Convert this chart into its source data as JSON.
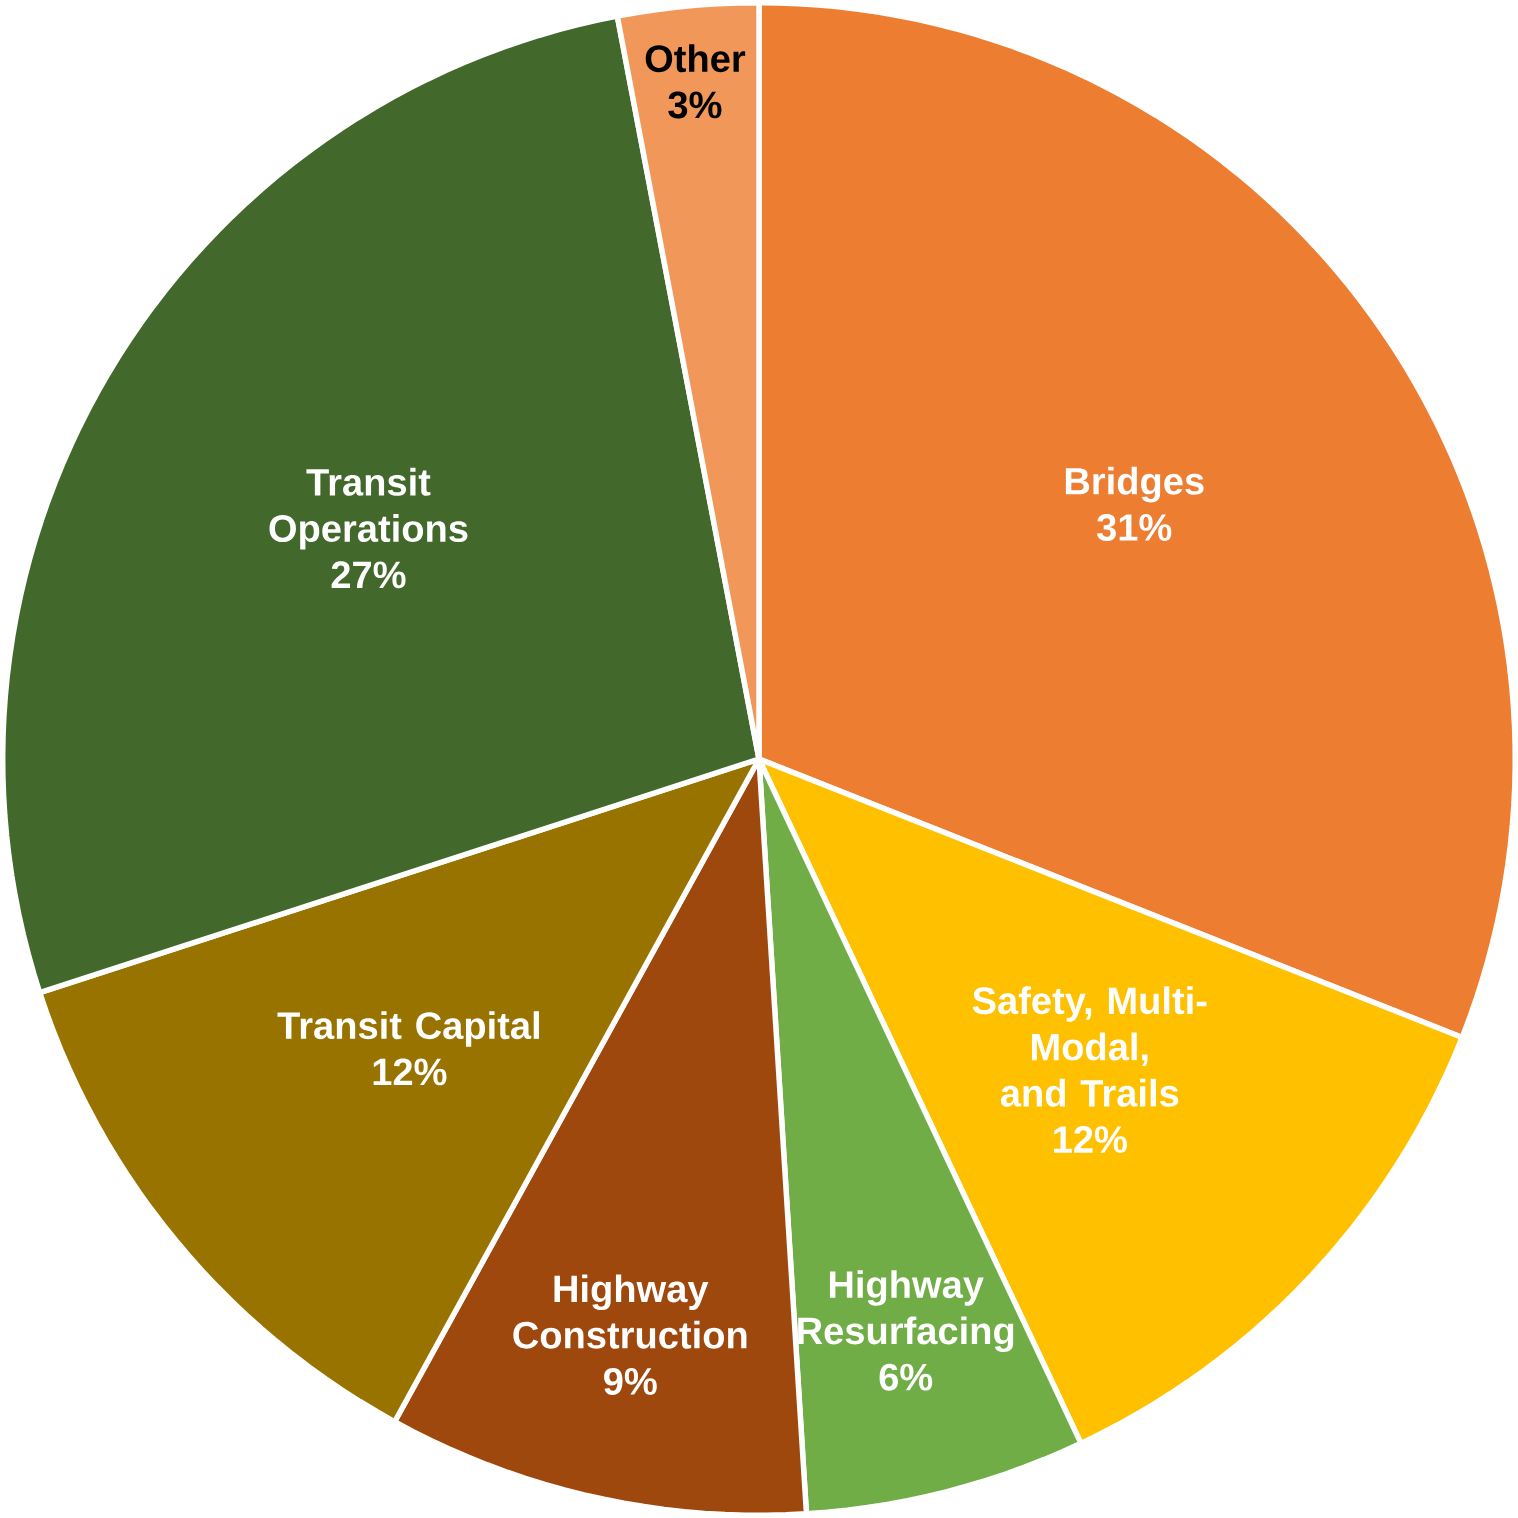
{
  "chart_data": {
    "type": "pie",
    "categories": [
      "Bridges",
      "Safety, Multi-Modal, and Trails",
      "Highway Resurfacing",
      "Highway Construction",
      "Transit Capital",
      "Transit Operations",
      "Other"
    ],
    "values": [
      31,
      12,
      6,
      9,
      12,
      27,
      3
    ],
    "value_labels": [
      "31%",
      "12%",
      "6%",
      "9%",
      "12%",
      "27%",
      "3%"
    ],
    "colors": [
      "#ed7d31",
      "#ffc000",
      "#70ad47",
      "#9e480e",
      "#997300",
      "#43682b",
      "#f1975a"
    ]
  }
}
